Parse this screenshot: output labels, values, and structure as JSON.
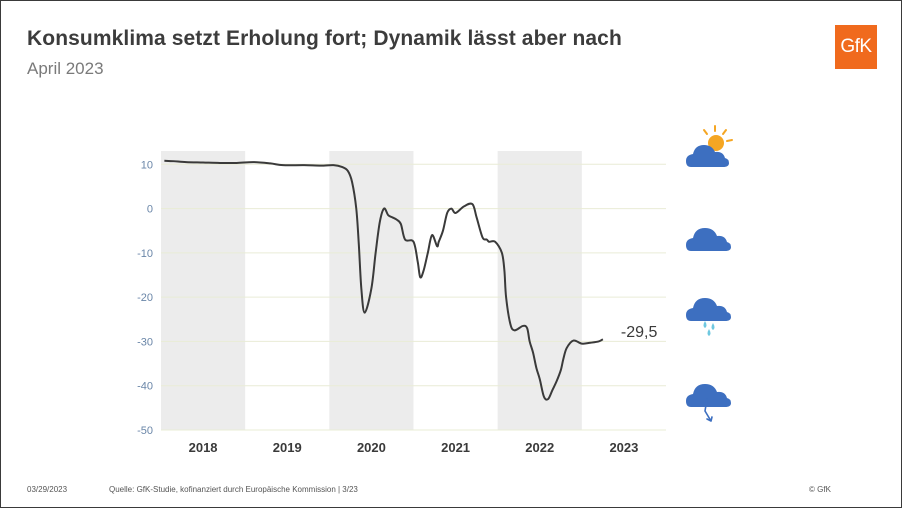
{
  "header": {
    "title": "Konsumklima setzt Erholung fort; Dynamik lässt aber nach",
    "subtitle": "April 2023",
    "logo_text": "GfK"
  },
  "footer": {
    "date": "03/29/2023",
    "source": "Quelle: GfK-Studie, kofinanziert durch Europäische Kommission | 3/23",
    "copyright": "© GfK"
  },
  "colors": {
    "line": "#3a3a3a",
    "band": "#ececec",
    "tick": "#6a86a8",
    "grid": "#e9ecd6",
    "brand": "#f06a1d",
    "cloud": "#3d6fc0",
    "sun": "#f5a623",
    "rain": "#6fc8e0"
  },
  "icons": [
    "sun-cloud-icon",
    "cloud-icon",
    "rain-cloud-icon",
    "storm-cloud-icon"
  ],
  "chart_data": {
    "type": "line",
    "title": "Konsumklima setzt Erholung fort; Dynamik lässt aber nach",
    "subtitle": "April 2023",
    "y_ticks": [
      10,
      0,
      -10,
      -20,
      -30,
      -40,
      -50
    ],
    "y_tick_labels": [
      "10",
      "0",
      "-10",
      "-20",
      "-30",
      "-40",
      "-50"
    ],
    "ylim": [
      -50,
      13
    ],
    "xlim": [
      2017.5,
      2023.5
    ],
    "x_ticks": [
      2018,
      2019,
      2020,
      2021,
      2022,
      2023
    ],
    "x_tick_labels": [
      "2018",
      "2019",
      "2020",
      "2021",
      "2022",
      "2023"
    ],
    "shaded_years": [
      2018,
      2020,
      2022
    ],
    "last_value_label": "-29,5",
    "grid": "horizontal",
    "series": [
      {
        "x": [
          2017.54,
          2017.65,
          2017.8,
          2018.0,
          2018.2,
          2018.4,
          2018.6,
          2018.8,
          2018.95,
          2019.2,
          2019.4,
          2019.55,
          2019.65,
          2019.72,
          2019.77,
          2019.82,
          2019.85,
          2019.88,
          2019.92,
          2020.0,
          2020.05,
          2020.1,
          2020.15,
          2020.2,
          2020.25,
          2020.3,
          2020.35,
          2020.4,
          2020.5,
          2020.55,
          2020.58,
          2020.62,
          2020.67,
          2020.72,
          2020.78,
          2020.8,
          2020.85,
          2020.9,
          2020.95,
          2021.0,
          2021.1,
          2021.2,
          2021.25,
          2021.32,
          2021.37,
          2021.4,
          2021.47,
          2021.55,
          2021.58,
          2021.6,
          2021.65,
          2021.7,
          2021.8,
          2021.85,
          2021.88,
          2021.92,
          2021.96,
          2022.0,
          2022.05,
          2022.1,
          2022.15,
          2022.2,
          2022.25,
          2022.28,
          2022.32,
          2022.4,
          2022.5,
          2022.6,
          2022.7,
          2022.75
        ],
        "y": [
          10.8,
          10.7,
          10.5,
          10.4,
          10.3,
          10.3,
          10.5,
          10.2,
          9.8,
          9.8,
          9.7,
          9.8,
          9.4,
          8.5,
          6.0,
          0.0,
          -8.0,
          -18.0,
          -23.5,
          -18.0,
          -10.0,
          -3.0,
          0.0,
          -1.5,
          -2.0,
          -2.5,
          -3.5,
          -7.0,
          -7.5,
          -12.0,
          -15.5,
          -14.0,
          -10.0,
          -6.0,
          -8.5,
          -7.5,
          -5.0,
          -1.0,
          0.0,
          -1.0,
          0.5,
          1.0,
          -2.0,
          -6.5,
          -7.0,
          -7.5,
          -7.5,
          -10.0,
          -14.0,
          -20.0,
          -26.0,
          -27.5,
          -26.5,
          -27.0,
          -30.0,
          -32.5,
          -36.0,
          -38.5,
          -42.5,
          -43.0,
          -41.0,
          -39.0,
          -36.5,
          -34.0,
          -31.5,
          -29.8,
          -30.5,
          -30.3,
          -30.0,
          -29.5
        ]
      }
    ]
  }
}
